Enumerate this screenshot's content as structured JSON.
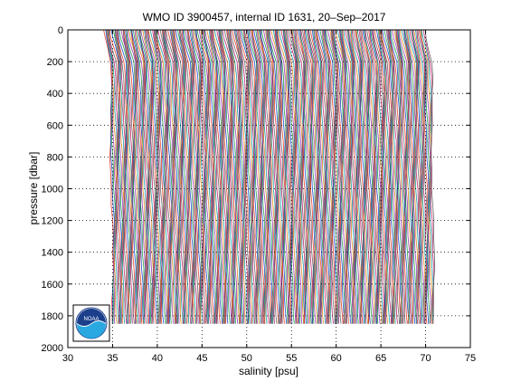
{
  "chart_data": {
    "type": "line",
    "title": "WMO ID 3900457, internal ID 1631, 20–Sep–2017",
    "xlabel": "salinity [psu]",
    "ylabel": "pressure [dbar]",
    "xlim": [
      30,
      75
    ],
    "ylim": [
      0,
      2000
    ],
    "y_reversed": true,
    "grid": true,
    "x_ticks": [
      30,
      35,
      40,
      45,
      50,
      55,
      60,
      65,
      70,
      75
    ],
    "y_ticks": [
      0,
      200,
      400,
      600,
      800,
      1000,
      1200,
      1400,
      1600,
      1800,
      2000
    ],
    "profile_offset_psu": 0.1,
    "profile_count": 360,
    "series_colors": [
      "#e8432b",
      "#1f4fcf",
      "#2aa04a",
      "#9a3fb8",
      "#e08a1e",
      "#1a9aa8",
      "#c22a6e",
      "#6a6a6a"
    ],
    "base_profile": {
      "pressure": [
        0,
        50,
        100,
        150,
        200,
        300,
        400,
        500,
        600,
        700,
        800,
        900,
        1000,
        1100,
        1200,
        1300,
        1400,
        1500,
        1600,
        1700,
        1800,
        1850
      ],
      "salinity": [
        34.0,
        34.1,
        34.3,
        34.5,
        34.7,
        34.75,
        34.78,
        34.8,
        34.82,
        34.84,
        34.86,
        34.88,
        34.9,
        34.92,
        34.94,
        34.95,
        34.96,
        34.97,
        34.98,
        34.98,
        34.99,
        35.0
      ]
    },
    "logo": {
      "name": "noaa-logo",
      "text": "NOAA"
    }
  }
}
